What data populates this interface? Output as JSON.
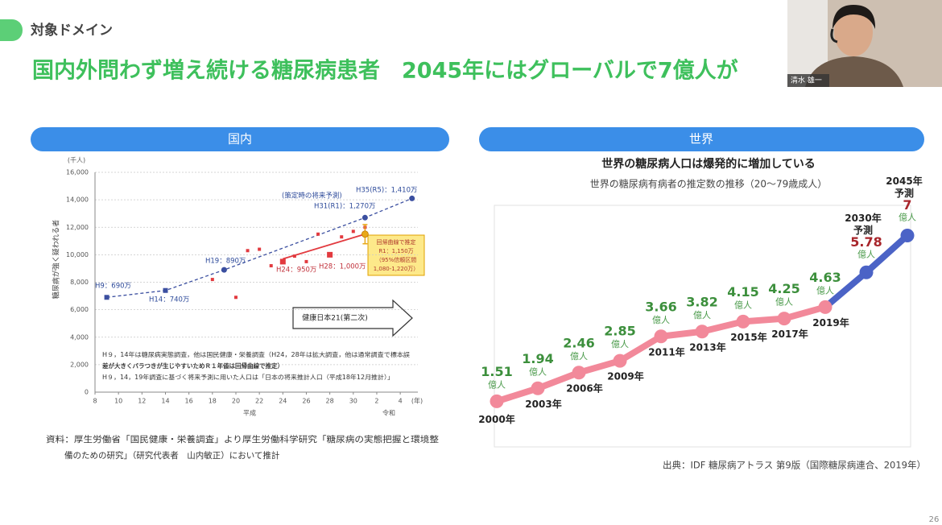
{
  "slide": {
    "section": "対象ドメイン",
    "title": "国内外問わず増え続ける糖尿病患者　2045年にはグローバルで7億人が",
    "speaker": "清水 雄一",
    "page": 26
  },
  "chart_data": [
    {
      "type": "scatter",
      "panel": "国内",
      "y_unit": "(千人)",
      "ylabel": "糖尿病が強く疑われる者",
      "x_unit": "(年)",
      "era_labels": [
        "平成",
        "令和"
      ],
      "xlim": [
        8,
        35.5
      ],
      "xticks": [
        8,
        10,
        12,
        14,
        16,
        18,
        20,
        22,
        24,
        26,
        28,
        30,
        {
          "value": 32,
          "label": "2"
        },
        {
          "value": 34,
          "label": "4"
        }
      ],
      "ylim": [
        0,
        16000
      ],
      "yticks": [
        0,
        {
          "value": 2000,
          "label": "2,000"
        },
        {
          "value": 4000,
          "label": "4,000"
        },
        {
          "value": 6000,
          "label": "6,000"
        },
        {
          "value": 8000,
          "label": "8,000"
        },
        {
          "value": 10000,
          "label": "10,000"
        },
        {
          "value": 12000,
          "label": "12,000"
        },
        {
          "value": 14000,
          "label": "14,000"
        },
        {
          "value": 16000,
          "label": "16,000"
        }
      ],
      "grid": true,
      "series": [
        {
          "mode": "dashed-line",
          "color": "#3b4fa0",
          "markers": [
            "square",
            "square",
            "circle",
            "circle",
            "circle"
          ],
          "x": [
            9,
            14,
            19,
            31,
            35
          ],
          "values": [
            6900,
            7400,
            8900,
            12700,
            14100
          ]
        },
        {
          "mode": "markers",
          "color": "#e23a3f",
          "x": [
            18,
            20,
            21,
            22,
            23,
            25,
            26,
            27,
            29,
            30,
            31
          ],
          "values": [
            8200,
            6900,
            10300,
            10400,
            9200,
            9900,
            9500,
            11500,
            11300,
            11700,
            12000
          ]
        },
        {
          "mode": "line",
          "color": "#e23a3f",
          "x": [
            24,
            31
          ],
          "values": [
            9700,
            11500
          ]
        },
        {
          "mode": "big-markers",
          "color": "#e23a3f",
          "x": [
            24,
            28
          ],
          "values": [
            9500,
            10000
          ]
        },
        {
          "mode": "errorbar",
          "color": "#e8a818",
          "x": [
            31
          ],
          "values": [
            11500
          ],
          "lower": [
            10800
          ],
          "upper": [
            12200
          ]
        }
      ],
      "annotations": [
        "H9：690万",
        "H14：740万",
        "H19：890万",
        "H24：950万",
        "H28：1,000万",
        "H31(R1)：1,270万",
        "H35(R5)：1,410万",
        "(策定時の将来予測)"
      ],
      "estimate_box": [
        "回帰曲線で推定",
        "R1：1,150万",
        "（95%信頼区間",
        "1,080-1,220万）"
      ],
      "arrow_label": "健康日本21(第二次)",
      "notes": [
        "H９，14年は糖尿病実態調査，他は国民健康・栄養調査（H24，28年は拡大調査，他は通常調査で標本誤",
        "差が大きくバラつきが生じやすいためＲ１年値は回帰曲線で推定）",
        "H９，14，19年調査に基づく将来予測に用いた人口は「日本の将来推計人口（平成18年12月推計）」"
      ],
      "source": [
        "資料：厚生労働省「国民健康・栄養調査」より厚生労働科学研究「糖尿病の実態把握と環境整",
        "備のための研究」（研究代表者　山内敏正）において推計"
      ]
    },
    {
      "type": "line",
      "panel": "世界",
      "title": "世界の糖尿病人口は爆発的に増加している",
      "subtitle": "世界の糖尿病有病者の推定数の推移（20～79歳成人）",
      "categories": [
        "2000年",
        "2003年",
        "2006年",
        "2009年",
        "2011年",
        "2013年",
        "2015年",
        "2017年",
        "2019年",
        "2030年",
        "2045年"
      ],
      "category_notes": [
        null,
        null,
        null,
        null,
        null,
        null,
        null,
        null,
        null,
        "予測",
        "予測"
      ],
      "values": [
        1.51,
        1.94,
        2.46,
        2.85,
        3.66,
        3.82,
        4.15,
        4.25,
        4.63,
        5.78,
        7
      ],
      "value_unit": "億人",
      "point_colors": [
        "#f2899a",
        "#f2899a",
        "#f2899a",
        "#f2899a",
        "#f2899a",
        "#f2899a",
        "#f2899a",
        "#f2899a",
        "#f2899a",
        "#4b63c6",
        "#4b63c6"
      ],
      "label_colors": [
        "#3c8f3c",
        "#3c8f3c",
        "#3c8f3c",
        "#3c8f3c",
        "#3c8f3c",
        "#3c8f3c",
        "#3c8f3c",
        "#3c8f3c",
        "#3c8f3c",
        "#a8262c",
        "#a8262c"
      ],
      "ylim": [
        0,
        8
      ],
      "source": "出典：IDF 糖尿病アトラス 第9版（国際糖尿病連合、2019年）"
    }
  ]
}
